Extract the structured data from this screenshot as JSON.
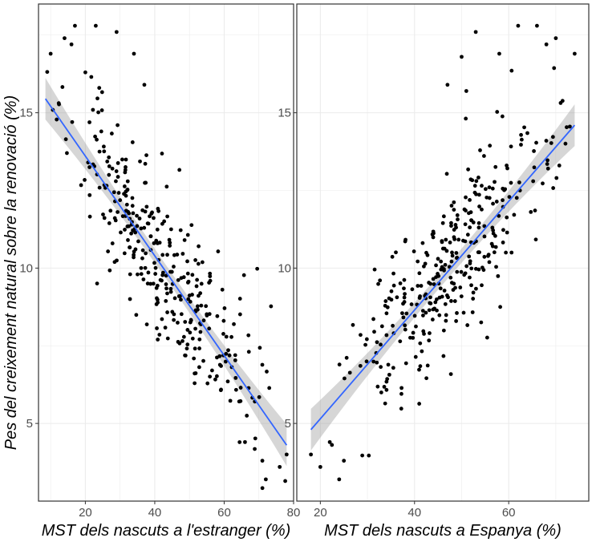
{
  "colors": {
    "background": "#ffffff",
    "grid": "#ebebeb",
    "panel_border": "#333333",
    "point": "#000000",
    "fit_line": "#3366ff",
    "ribbon": "#999999"
  },
  "chart_data": [
    {
      "type": "scatter",
      "title": "",
      "xlabel": "MST dels nascuts a l'estranger (%)",
      "ylabel": "Pes del creixement natural sobre la renovació (%)",
      "xlim": [
        6.5,
        80
      ],
      "ylim": [
        2.5,
        18.5
      ],
      "xticks": [
        20,
        40,
        60,
        80
      ],
      "yticks": [
        5,
        10,
        15
      ],
      "xtick_labels": [
        "20",
        "40",
        "60",
        "80"
      ],
      "ytick_labels": [
        "5",
        "10",
        "15"
      ],
      "grid": true,
      "fit": {
        "method": "linear",
        "x": [
          8.5,
          78
        ],
        "y": [
          15.45,
          4.3
        ],
        "band": [
          0.45,
          0.45
        ]
      },
      "points_generation": {
        "n": 330,
        "seed": 11,
        "xrange": [
          9,
          78
        ],
        "center_x": 42,
        "noise_sd": 1.25
      },
      "points_top": [
        [
          10,
          16.9
        ],
        [
          14,
          17.4
        ],
        [
          16,
          17.2
        ],
        [
          17,
          17.8
        ],
        [
          23,
          17.8
        ],
        [
          29,
          17.6
        ],
        [
          34,
          16.9
        ],
        [
          20,
          16.3
        ],
        [
          24,
          15.8
        ],
        [
          37,
          15.9
        ]
      ],
      "points_bottom": [
        [
          72,
          3.2
        ],
        [
          76,
          3.6
        ],
        [
          78,
          4.0
        ],
        [
          71,
          3.8
        ],
        [
          66,
          4.4
        ]
      ]
    },
    {
      "type": "scatter",
      "title": "",
      "xlabel": "MST dels nascuts a Espanya (%)",
      "ylabel": "",
      "xlim": [
        15,
        77
      ],
      "ylim": [
        2.5,
        18.5
      ],
      "xticks": [
        20,
        40,
        60
      ],
      "yticks": [
        5,
        10,
        15
      ],
      "xtick_labels": [
        "20",
        "40",
        "60"
      ],
      "ytick_labels": [
        "5",
        "10",
        "15"
      ],
      "grid": true,
      "fit": {
        "method": "linear",
        "x": [
          18,
          74
        ],
        "y": [
          4.8,
          14.6
        ],
        "band": [
          0.5,
          0.5
        ]
      },
      "points_generation": {
        "n": 330,
        "seed": 23,
        "xrange": [
          18,
          74
        ],
        "center_x": 47,
        "noise_sd": 1.25
      },
      "points_top": [
        [
          74,
          16.9
        ],
        [
          70,
          17.4
        ],
        [
          68,
          17.2
        ],
        [
          66,
          17.8
        ],
        [
          62,
          17.8
        ],
        [
          53,
          17.6
        ],
        [
          58,
          16.9
        ],
        [
          50,
          16.8
        ],
        [
          47,
          15.9
        ],
        [
          51,
          15.7
        ]
      ],
      "points_bottom": [
        [
          24,
          3.2
        ],
        [
          20,
          3.6
        ],
        [
          18,
          4.0
        ],
        [
          25,
          3.8
        ],
        [
          22,
          4.4
        ]
      ]
    }
  ]
}
